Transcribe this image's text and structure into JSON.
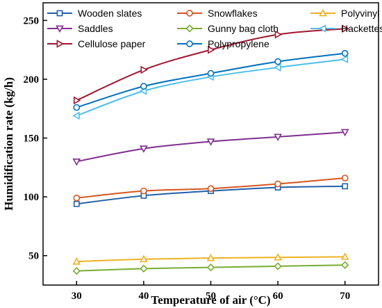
{
  "chart_data": {
    "type": "line",
    "title": "",
    "xlabel": "Temperature of air (°C)",
    "ylabel": "Humidification rate (kg/h)",
    "x": [
      30,
      40,
      50,
      60,
      70
    ],
    "x_ticks": [
      "30",
      "40",
      "50",
      "60",
      "70"
    ],
    "y_ticks": [
      "50",
      "100",
      "150",
      "200",
      "250"
    ],
    "xlim": [
      25,
      75
    ],
    "ylim": [
      25,
      265
    ],
    "grid": false,
    "legend_position": "top",
    "series": [
      {
        "name": "Wooden slates",
        "color": "#1f5fa8",
        "marker": "square",
        "values": [
          94,
          101,
          105,
          108,
          109
        ]
      },
      {
        "name": "Snowflakes",
        "color": "#d9541e",
        "marker": "circle",
        "values": [
          99,
          105,
          107,
          111,
          116
        ]
      },
      {
        "name": "Polyvinyl chloride",
        "color": "#eeb220",
        "marker": "triangle-up",
        "values": [
          45,
          47,
          48,
          48.5,
          49
        ]
      },
      {
        "name": "Saddles",
        "color": "#7e2f8e",
        "marker": "triangle-down",
        "values": [
          130,
          141,
          147,
          151,
          155
        ]
      },
      {
        "name": "Gunny bag cloth",
        "color": "#77ac30",
        "marker": "diamond",
        "values": [
          37,
          39,
          40,
          41,
          42
        ]
      },
      {
        "name": "Hackettes",
        "color": "#4dbeee",
        "marker": "triangle-left",
        "values": [
          169,
          190,
          202,
          210,
          217
        ]
      },
      {
        "name": "Cellulose paper",
        "color": "#a2142f",
        "marker": "triangle-right",
        "values": [
          182,
          208,
          225,
          238,
          243
        ]
      },
      {
        "name": "Polypropylene",
        "color": "#0072bd",
        "marker": "circle",
        "values": [
          176,
          194,
          205,
          215,
          222
        ]
      }
    ]
  }
}
